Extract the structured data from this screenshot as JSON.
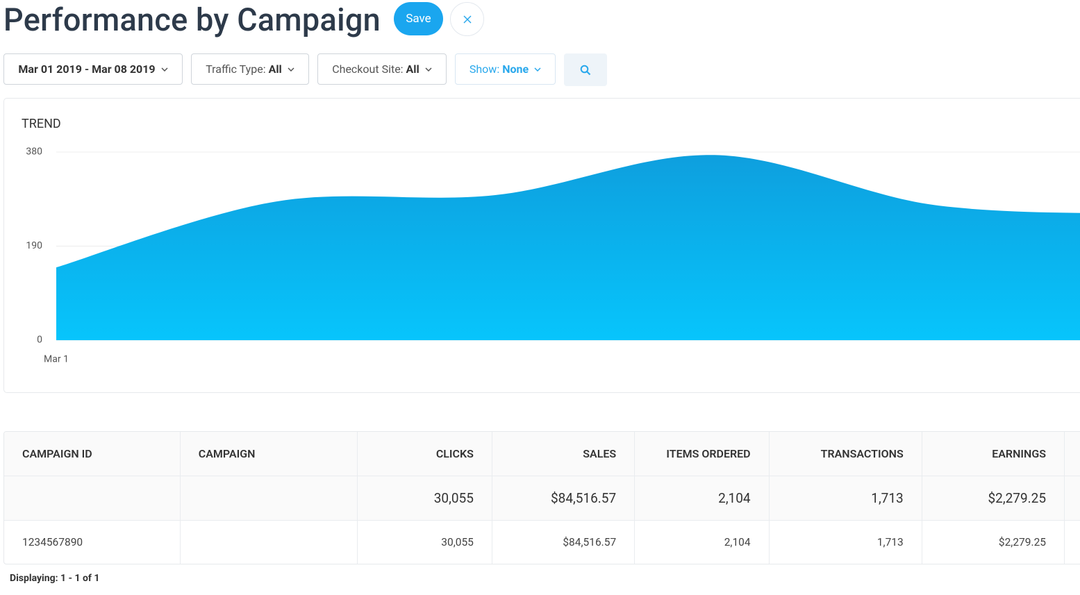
{
  "header": {
    "title": "Performance by Campaign",
    "save": "Save"
  },
  "filters": [
    {
      "value": "Mar 01 2019 - Mar 08 2019"
    },
    {
      "label": "Traffic Type:",
      "value": "All"
    },
    {
      "label": "Checkout Site:",
      "value": "All"
    },
    {
      "label": "Show:",
      "value": "None"
    }
  ],
  "chart_data": {
    "type": "area",
    "title": "TREND",
    "categories": [
      "Mar 1",
      null,
      null,
      null,
      null,
      null
    ],
    "values": [
      147,
      280,
      293,
      374,
      273,
      255
    ],
    "ylim": [
      0,
      380
    ],
    "yticks": [
      0,
      190,
      380
    ],
    "grid": true,
    "color": "#0ea3e3"
  },
  "table": {
    "columns": [
      "CAMPAIGN ID",
      "CAMPAIGN",
      "CLICKS",
      "SALES",
      "ITEMS ORDERED",
      "TRANSACTIONS",
      "EARNINGS"
    ],
    "total": [
      null,
      null,
      "30,055",
      "$84,516.57",
      "2,104",
      "1,713",
      "$2,279.25"
    ],
    "rows": [
      [
        "1234567890",
        null,
        "30,055",
        "$84,516.57",
        "2,104",
        "1,713",
        "$2,279.25"
      ]
    ]
  },
  "footer": "Displaying: 1 - 1 of 1"
}
